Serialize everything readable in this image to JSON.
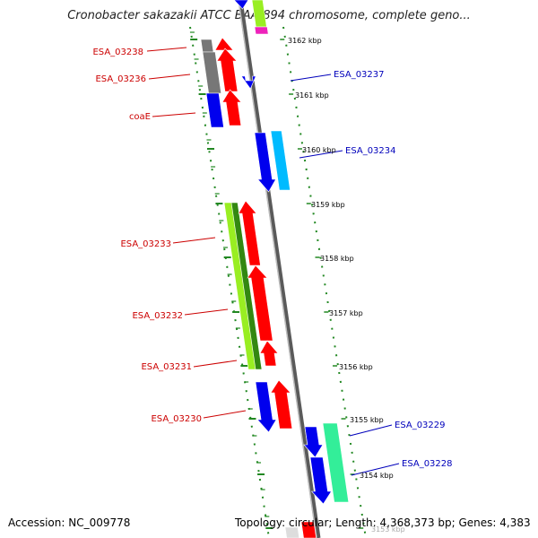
{
  "title": "Cronobacter sakazakii ATCC BAA-894 chromosome, complete geno...",
  "footer": {
    "accession": "Accession: NC_009778",
    "topology": "Topology: circular; Length: 4,368,373 bp; Genes: 4,383"
  },
  "colors": {
    "forward_label": "#cc0000",
    "reverse_label": "#0000bb",
    "red": "#ff0000",
    "blue": "#0000ee",
    "cyan": "#00bbff",
    "lime": "#99ee22",
    "green": "#338811",
    "gray": "#777777",
    "teal": "#33ee99",
    "magenta": "#ee22bb",
    "tick": "#228822"
  },
  "scale_labels": [
    "3162 kbp",
    "3161 kbp",
    "3160 kbp",
    "3159 kbp",
    "3158 kbp",
    "3157 kbp",
    "3156 kbp",
    "3155 kbp",
    "3154 kbp",
    "3153 kbp"
  ],
  "genes": [
    {
      "label": "ESA_03238",
      "strand": "forward"
    },
    {
      "label": "ESA_03236",
      "strand": "forward"
    },
    {
      "label": "coaE",
      "strand": "forward"
    },
    {
      "label": "ESA_03233",
      "strand": "forward"
    },
    {
      "label": "ESA_03232",
      "strand": "forward"
    },
    {
      "label": "ESA_03231",
      "strand": "forward"
    },
    {
      "label": "ESA_03230",
      "strand": "forward"
    },
    {
      "label": "ESA_03237",
      "strand": "reverse"
    },
    {
      "label": "ESA_03234",
      "strand": "reverse"
    },
    {
      "label": "ESA_03229",
      "strand": "reverse"
    },
    {
      "label": "ESA_03228",
      "strand": "reverse"
    }
  ]
}
